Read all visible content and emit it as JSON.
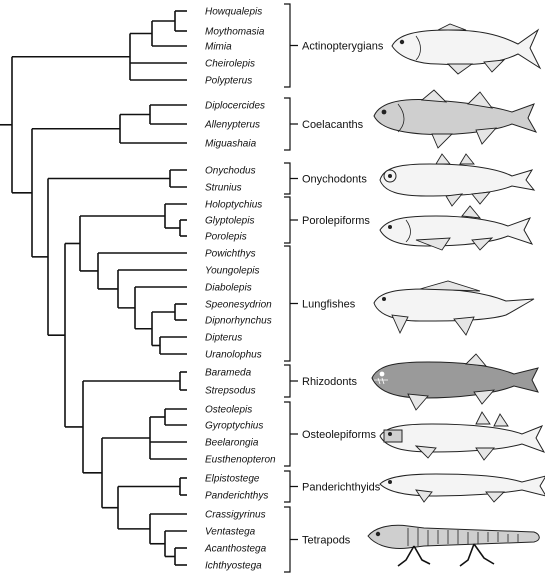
{
  "taxa": [
    "Howqualepis",
    "Moythomasia",
    "Mimia",
    "Cheirolepis",
    "Polypterus",
    "Diplocercides",
    "Allenypterus",
    "Miguashaia",
    "Onychodus",
    "Strunius",
    "Holoptychius",
    "Glyptolepis",
    "Porolepis",
    "Powichthys",
    "Youngolepis",
    "Diabolepis",
    "Speonesydrion",
    "Dipnorhynchus",
    "Dipterus",
    "Uranolophus",
    "Barameda",
    "Strepsodus",
    "Osteolepis",
    "Gyroptychius",
    "Beelarongia",
    "Eusthenopteron",
    "Elpistostege",
    "Panderichthys",
    "Crassigyrinus",
    "Ventastega",
    "Acanthostega",
    "Ichthyostega"
  ],
  "groups": [
    {
      "label": "Actinopterygians",
      "icon": "actinopterygian-fish-icon"
    },
    {
      "label": "Coelacanths",
      "icon": "coelacanth-fish-icon"
    },
    {
      "label": "Onychodonts",
      "icon": "onychodont-fish-icon"
    },
    {
      "label": "Porolepiforms",
      "icon": "porolepiform-fish-icon"
    },
    {
      "label": "Lungfishes",
      "icon": "lungfish-icon"
    },
    {
      "label": "Rhizodonts",
      "icon": "rhizodont-fish-icon"
    },
    {
      "label": "Osteolepiforms",
      "icon": "osteolepiform-fish-icon"
    },
    {
      "label": "Panderichthyids",
      "icon": "panderichthyid-fish-icon"
    },
    {
      "label": "Tetrapods",
      "icon": "tetrapod-skeleton-icon"
    }
  ]
}
